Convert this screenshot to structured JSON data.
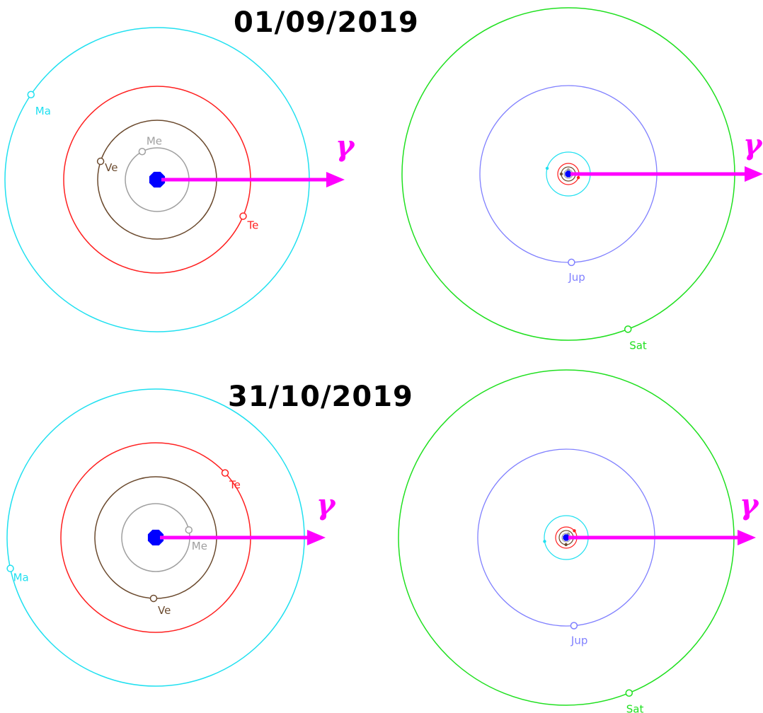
{
  "panels": [
    {
      "date": "01/09/2019",
      "vernal_equinox_symbol": "γ",
      "inner_system": {
        "planets": [
          {
            "label": "Me",
            "color": "#a0a0a0",
            "angle_deg": 118
          },
          {
            "label": "Ve",
            "color": "#6b4a2e",
            "angle_deg": 162
          },
          {
            "label": "Te",
            "color": "#ff2020",
            "angle_deg": -23
          },
          {
            "label": "Ma",
            "color": "#20e0f0",
            "angle_deg": 146
          }
        ]
      },
      "outer_system": {
        "planets": [
          {
            "label": "Jup",
            "color": "#8080ff",
            "angle_deg": -88
          },
          {
            "label": "Sat",
            "color": "#20e020",
            "angle_deg": -69
          }
        ]
      }
    },
    {
      "date": "31/10/2019",
      "vernal_equinox_symbol": "γ",
      "inner_system": {
        "planets": [
          {
            "label": "Me",
            "color": "#a0a0a0",
            "angle_deg": 13
          },
          {
            "label": "Ve",
            "color": "#6b4a2e",
            "angle_deg": -92
          },
          {
            "label": "Te",
            "color": "#ff2020",
            "angle_deg": 43
          },
          {
            "label": "Ma",
            "color": "#20e0f0",
            "angle_deg": 192
          }
        ]
      },
      "outer_system": {
        "planets": [
          {
            "label": "Jup",
            "color": "#8080ff",
            "angle_deg": -85
          },
          {
            "label": "Sat",
            "color": "#20e020",
            "angle_deg": -68
          }
        ]
      }
    }
  ],
  "colors": {
    "sun": "#0000ff",
    "arrow": "#ff00ff",
    "mercury": "#a0a0a0",
    "venus": "#6b4a2e",
    "earth": "#ff2020",
    "mars": "#20e0f0",
    "jupiter": "#8080ff",
    "saturn": "#20e020"
  }
}
